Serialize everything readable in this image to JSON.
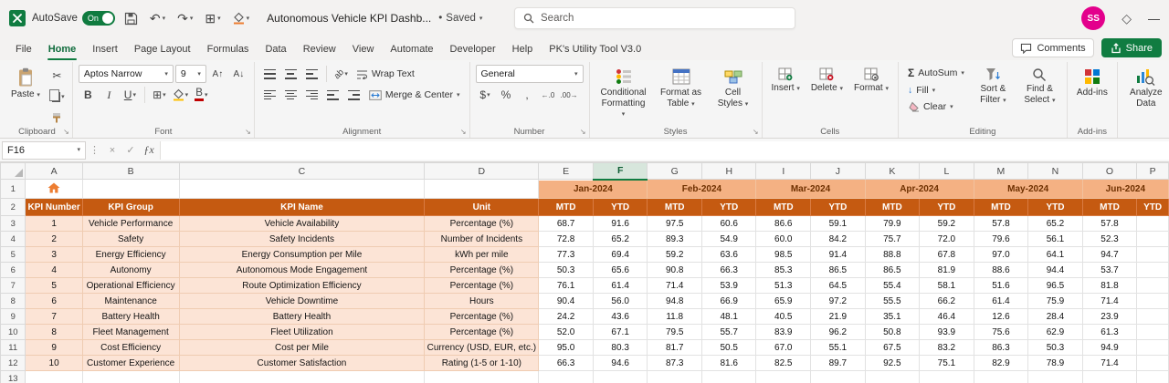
{
  "titlebar": {
    "autosave": "AutoSave",
    "autosave_state": "On",
    "doc_title": "Autonomous Vehicle KPI Dashb...",
    "saved": "Saved",
    "search": "Search",
    "avatar": "SS"
  },
  "tabs": {
    "items": [
      "File",
      "Home",
      "Insert",
      "Page Layout",
      "Formulas",
      "Data",
      "Review",
      "View",
      "Automate",
      "Developer",
      "Help",
      "PK's Utility Tool V3.0"
    ],
    "active": "Home",
    "comments": "Comments",
    "share": "Share"
  },
  "ribbon": {
    "paste": "Paste",
    "clipboard": "Clipboard",
    "font_name": "Aptos Narrow",
    "font_size": "9",
    "font": "Font",
    "wrap_text": "Wrap Text",
    "merge_center": "Merge & Center",
    "alignment": "Alignment",
    "number_format": "General",
    "number": "Number",
    "conditional": "Conditional Formatting",
    "format_table": "Format as Table",
    "cell_styles": "Cell Styles",
    "styles": "Styles",
    "insert": "Insert",
    "delete": "Delete",
    "format": "Format",
    "cells": "Cells",
    "autosum": "AutoSum",
    "fill": "Fill",
    "clear": "Clear",
    "sort_filter": "Sort & Filter",
    "find_select": "Find & Select",
    "editing": "Editing",
    "addins": "Add-ins",
    "analyze": "Analyze Data"
  },
  "formula_bar": {
    "name_box": "F16"
  },
  "icons": {
    "chevron": "▾",
    "launcher": "↘",
    "undo": "↶",
    "redo": "↷",
    "borders": "⊞",
    "scissors": "✂",
    "sigma": "Σ",
    "diamond": "◇",
    "minimize": "—",
    "bullet": "•",
    "check": "✓",
    "close": "×",
    "fx": "ƒx",
    "dots": "⋮",
    "dollar": "$",
    "percent": "%",
    "comma": ",",
    "inc_decimal": "←.0",
    "dec_decimal": ".00→",
    "bold": "B",
    "italic": "I",
    "underline": "U",
    "grow": "A↑",
    "shrink": "A↓",
    "orientation": "ab",
    "fill_down": "↓"
  },
  "colors": {
    "accent_green": "#107C41",
    "header_dark": "#C55A11",
    "header_light": "#F4B183",
    "label_bg": "#FCE4D6",
    "avatar_pink": "#E3008C"
  },
  "sheet": {
    "columns": [
      "A",
      "B",
      "C",
      "D",
      "E",
      "F",
      "G",
      "H",
      "I",
      "J",
      "K",
      "L",
      "M",
      "N",
      "O",
      "P"
    ],
    "active_column": "F",
    "row_numbers": [
      "1",
      "2",
      "3",
      "4",
      "5",
      "6",
      "7",
      "8",
      "9",
      "10",
      "11",
      "12",
      "13"
    ],
    "months": [
      "Jan-2024",
      "Feb-2024",
      "Mar-2024",
      "Apr-2024",
      "May-2024",
      "Jun-2024"
    ],
    "header": {
      "kpi_number": "KPI Number",
      "kpi_group": "KPI Group",
      "kpi_name": "KPI Name",
      "unit": "Unit",
      "mtd": "MTD",
      "ytd": "YTD"
    },
    "rows": [
      {
        "num": "1",
        "group": "Vehicle Performance",
        "name": "Vehicle Availability",
        "unit": "Percentage (%)",
        "values": [
          "68.7",
          "91.6",
          "97.5",
          "60.6",
          "86.6",
          "59.1",
          "79.9",
          "59.2",
          "57.8",
          "65.2",
          "57.8"
        ]
      },
      {
        "num": "2",
        "group": "Safety",
        "name": "Safety Incidents",
        "unit": "Number of Incidents",
        "values": [
          "72.8",
          "65.2",
          "89.3",
          "54.9",
          "60.0",
          "84.2",
          "75.7",
          "72.0",
          "79.6",
          "56.1",
          "52.3"
        ]
      },
      {
        "num": "3",
        "group": "Energy Efficiency",
        "name": "Energy Consumption per Mile",
        "unit": "kWh per mile",
        "values": [
          "77.3",
          "69.4",
          "59.2",
          "63.6",
          "98.5",
          "91.4",
          "88.8",
          "67.8",
          "97.0",
          "64.1",
          "94.7"
        ]
      },
      {
        "num": "4",
        "group": "Autonomy",
        "name": "Autonomous Mode Engagement",
        "unit": "Percentage (%)",
        "values": [
          "50.3",
          "65.6",
          "90.8",
          "66.3",
          "85.3",
          "86.5",
          "86.5",
          "81.9",
          "88.6",
          "94.4",
          "53.7"
        ]
      },
      {
        "num": "5",
        "group": "Operational Efficiency",
        "name": "Route Optimization Efficiency",
        "unit": "Percentage (%)",
        "values": [
          "76.1",
          "61.4",
          "71.4",
          "53.9",
          "51.3",
          "64.5",
          "55.4",
          "58.1",
          "51.6",
          "96.5",
          "81.8"
        ]
      },
      {
        "num": "6",
        "group": "Maintenance",
        "name": "Vehicle Downtime",
        "unit": "Hours",
        "values": [
          "90.4",
          "56.0",
          "94.8",
          "66.9",
          "65.9",
          "97.2",
          "55.5",
          "66.2",
          "61.4",
          "75.9",
          "71.4"
        ]
      },
      {
        "num": "7",
        "group": "Battery Health",
        "name": "Battery Health",
        "unit": "Percentage (%)",
        "values": [
          "24.2",
          "43.6",
          "11.8",
          "48.1",
          "40.5",
          "21.9",
          "35.1",
          "46.4",
          "12.6",
          "28.4",
          "23.9"
        ]
      },
      {
        "num": "8",
        "group": "Fleet Management",
        "name": "Fleet Utilization",
        "unit": "Percentage (%)",
        "values": [
          "52.0",
          "67.1",
          "79.5",
          "55.7",
          "83.9",
          "96.2",
          "50.8",
          "93.9",
          "75.6",
          "62.9",
          "61.3"
        ]
      },
      {
        "num": "9",
        "group": "Cost Efficiency",
        "name": "Cost per Mile",
        "unit": "Currency (USD, EUR, etc.)",
        "values": [
          "95.0",
          "80.3",
          "81.7",
          "50.5",
          "67.0",
          "55.1",
          "67.5",
          "83.2",
          "86.3",
          "50.3",
          "94.9"
        ]
      },
      {
        "num": "10",
        "group": "Customer Experience",
        "name": "Customer Satisfaction",
        "unit": "Rating (1-5 or 1-10)",
        "values": [
          "66.3",
          "94.6",
          "87.3",
          "81.6",
          "82.5",
          "89.7",
          "92.5",
          "75.1",
          "82.9",
          "78.9",
          "71.4"
        ]
      }
    ]
  }
}
